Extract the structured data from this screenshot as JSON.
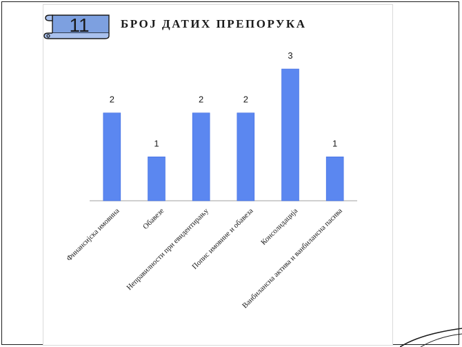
{
  "slide": {
    "number": "11",
    "title": "БРОЈ ДАТИХ ПРЕПОРУКА"
  },
  "colors": {
    "bar": "#5b87f0",
    "bar_edge": "#3f6be0",
    "axis": "#bfbfbf",
    "text": "#1a1a1a"
  },
  "chart_data": {
    "type": "bar",
    "title": "БРОЈ ДАТИХ ПРЕПОРУКА",
    "categories": [
      "Финансијска имовина",
      "Обавезе",
      "Неправилности при евидентирању",
      "Попис имовине и обавеза",
      "Консолидација",
      "Ванбилансна актива и ванбилансна пасива"
    ],
    "values": [
      2,
      1,
      2,
      2,
      3,
      1
    ],
    "ylim": [
      0,
      3
    ],
    "grid": false,
    "legend": "none",
    "data_labels": true
  }
}
